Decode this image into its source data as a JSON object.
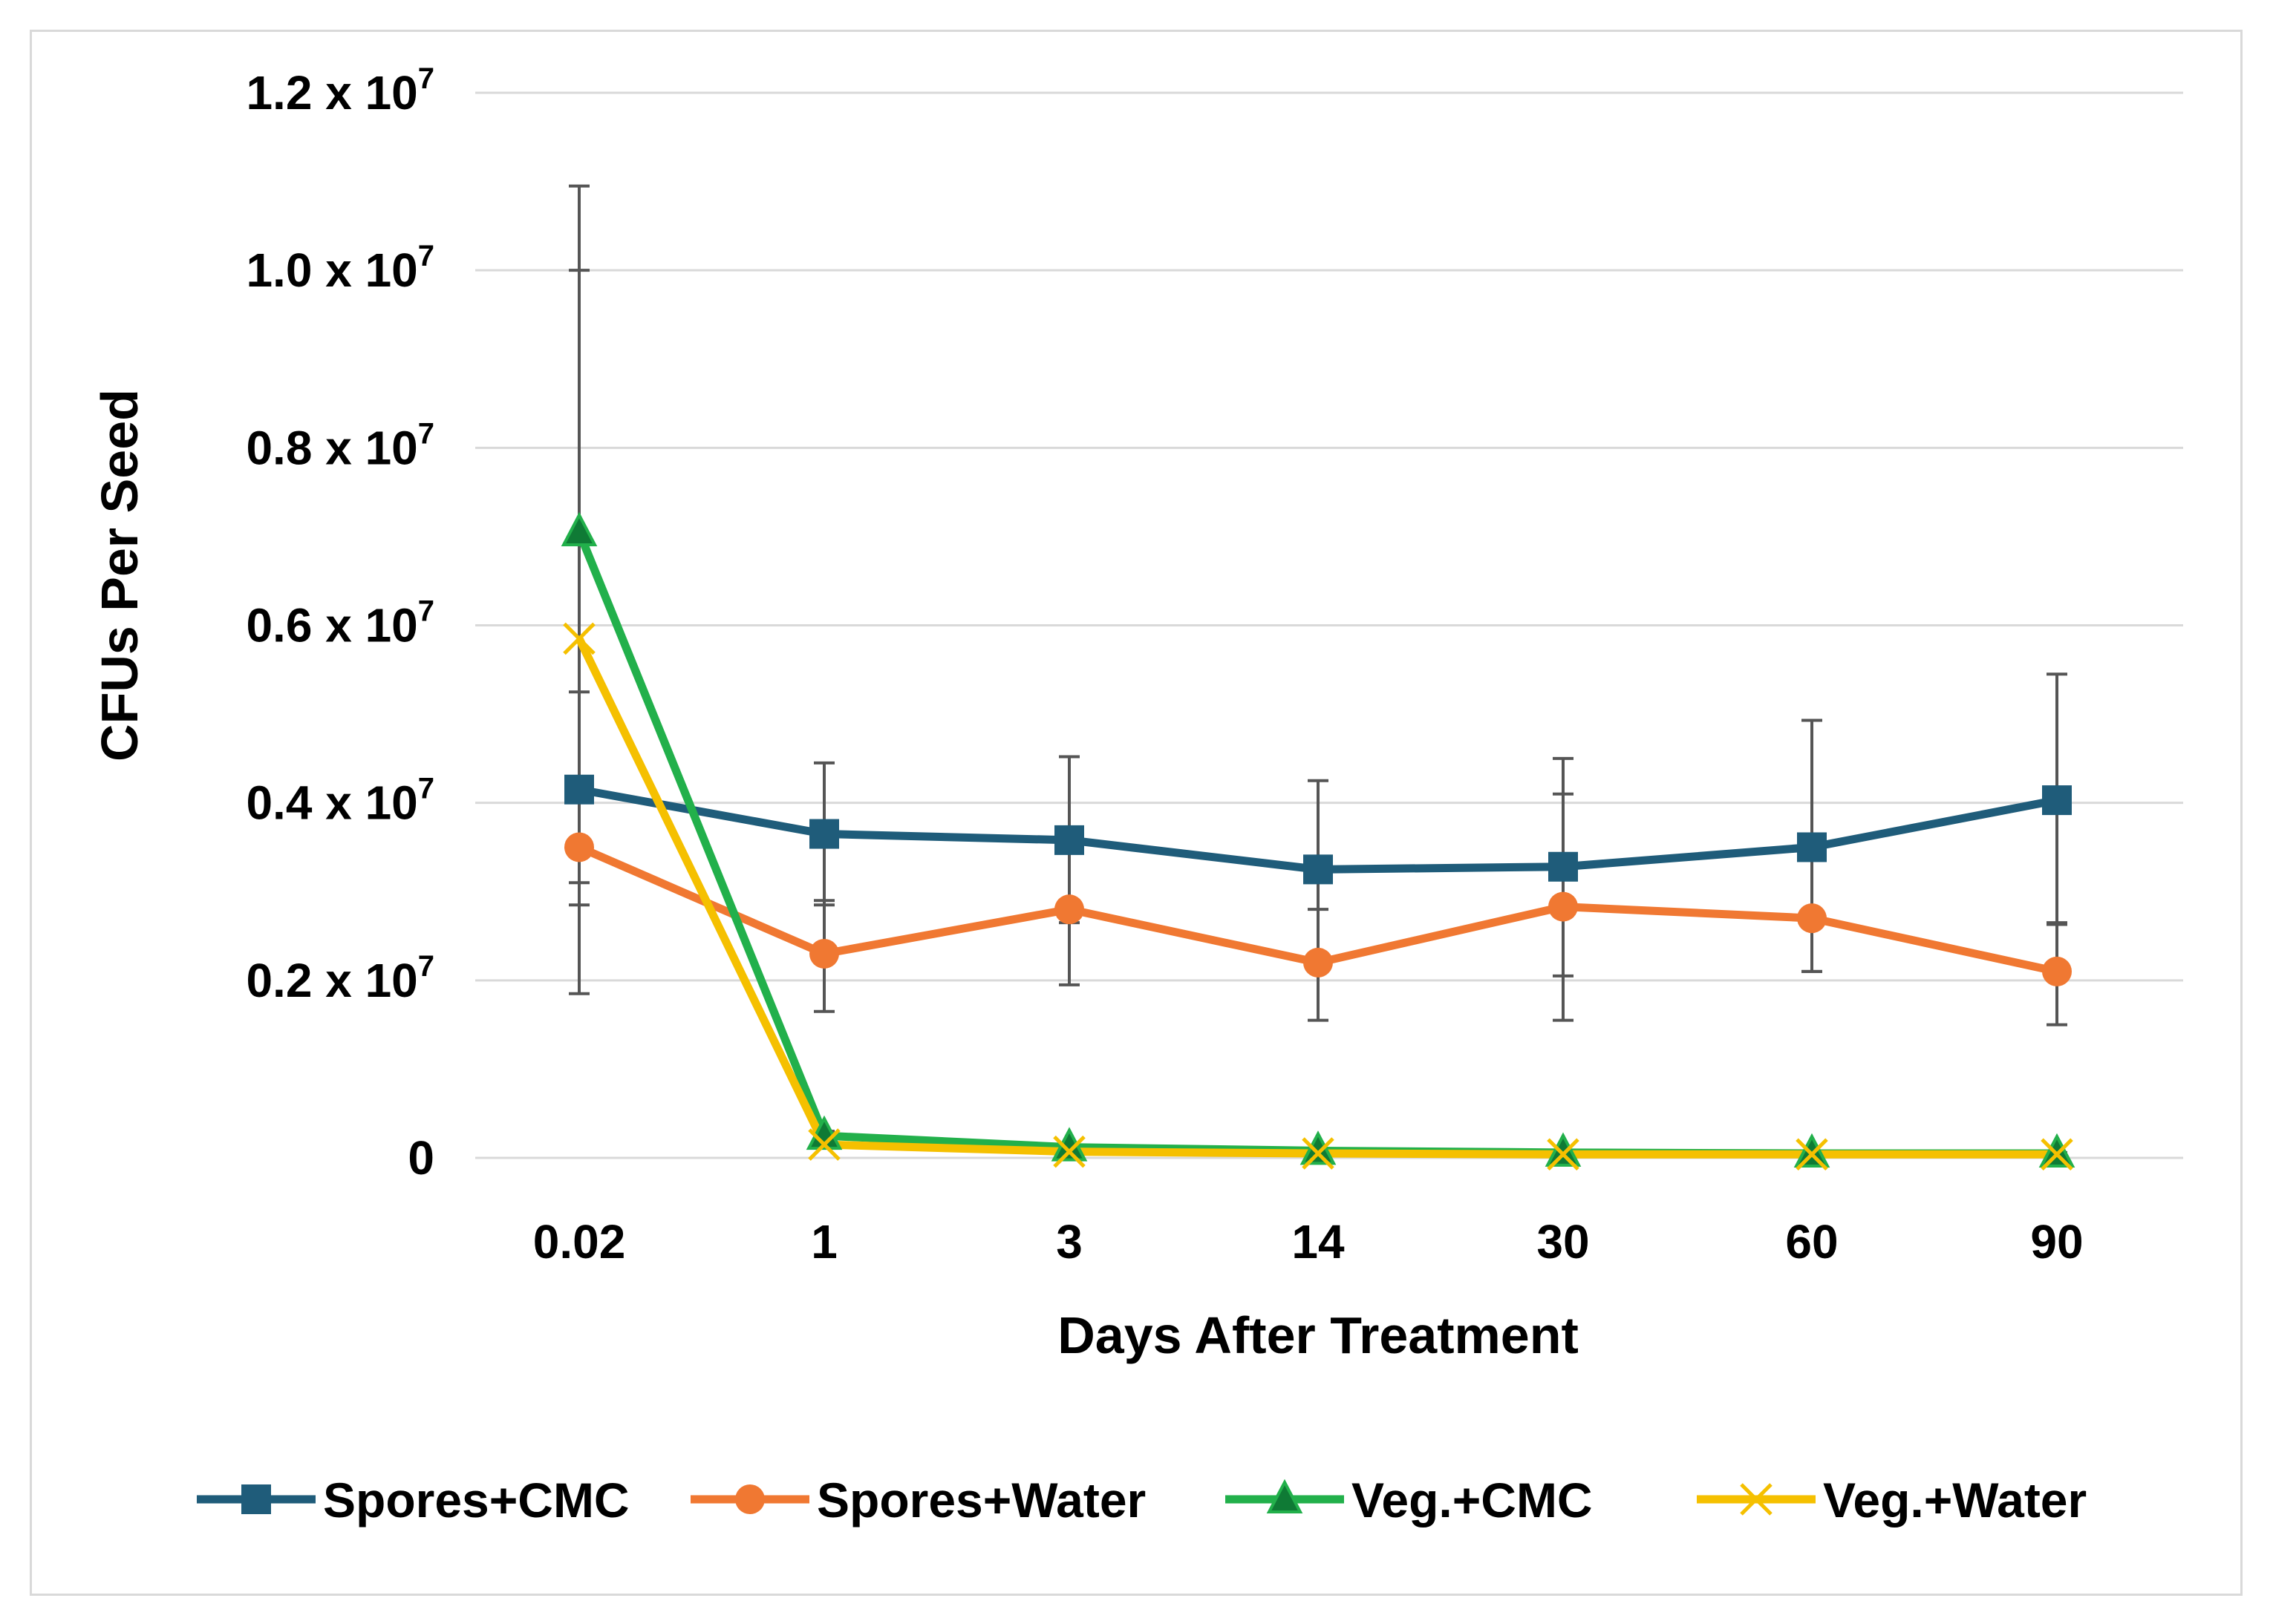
{
  "chart_data": {
    "type": "line",
    "xlabel": "Days After Treatment",
    "ylabel": "CFUs Per Seed",
    "categories": [
      "0.02",
      "1",
      "3",
      "14",
      "30",
      "60",
      "90"
    ],
    "ylim": [
      0,
      12000000
    ],
    "y_ticks": [
      {
        "value": 0,
        "mantissa": "0",
        "exp": ""
      },
      {
        "value": 2000000,
        "mantissa": "0.2 x 10",
        "exp": "7"
      },
      {
        "value": 4000000,
        "mantissa": "0.4 x 10",
        "exp": "7"
      },
      {
        "value": 6000000,
        "mantissa": "0.6 x 10",
        "exp": "7"
      },
      {
        "value": 8000000,
        "mantissa": "0.8 x 10",
        "exp": "7"
      },
      {
        "value": 10000000,
        "mantissa": "1.0 x 10",
        "exp": "7"
      },
      {
        "value": 12000000,
        "mantissa": "1.2 x 10",
        "exp": "7"
      }
    ],
    "grid": true,
    "legend_position": "bottom",
    "series": [
      {
        "name": "Spores+CMC",
        "color": "#1f5c7a",
        "marker": "square",
        "values": [
          4150000,
          3650000,
          3580000,
          3250000,
          3280000,
          3500000,
          4030000
        ],
        "err_high": [
          10000000,
          4450000,
          4520000,
          4250000,
          4500000,
          4930000,
          5450000
        ],
        "err_low": [
          2850000,
          2850000,
          2650000,
          2300000,
          2050000,
          2100000,
          2650000
        ]
      },
      {
        "name": "Spores+Water",
        "color": "#f07832",
        "marker": "circle",
        "values": [
          3500000,
          2300000,
          2800000,
          2200000,
          2830000,
          2700000,
          2100000
        ],
        "err_high": [
          5250000,
          2900000,
          3700000,
          2800000,
          4100000,
          3500000,
          2630000
        ],
        "err_low": [
          1850000,
          1650000,
          1950000,
          1550000,
          1550000,
          2100000,
          1500000
        ]
      },
      {
        "name": "Veg.+CMC",
        "color": "#22b04b",
        "marker": "triangle",
        "values": [
          7050000,
          250000,
          120000,
          80000,
          60000,
          50000,
          50000
        ],
        "err_high": [
          10950000,
          300000,
          150000,
          100000,
          80000,
          60000,
          60000
        ],
        "err_low": [
          3100000,
          200000,
          90000,
          60000,
          40000,
          40000,
          40000
        ]
      },
      {
        "name": "Veg.+Water",
        "color": "#f5c000",
        "marker": "x",
        "values": [
          5850000,
          150000,
          70000,
          50000,
          40000,
          40000,
          40000
        ],
        "err_high": [
          5850000,
          150000,
          70000,
          50000,
          40000,
          40000,
          40000
        ],
        "err_low": [
          5850000,
          150000,
          70000,
          50000,
          40000,
          40000,
          40000
        ]
      }
    ]
  }
}
